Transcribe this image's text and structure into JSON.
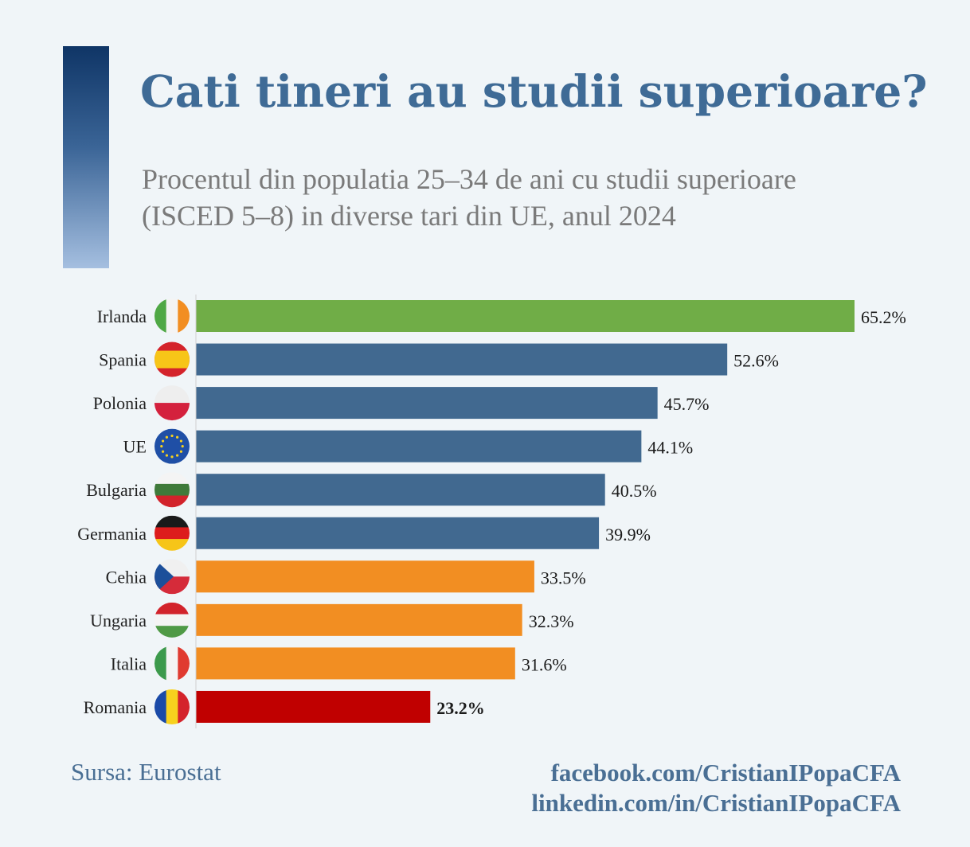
{
  "title": "Cati tineri au studii superioare?",
  "subtitle_line1": "Procentul din populatia 25–34 de ani cu studii superioare",
  "subtitle_line2": "(ISCED 5–8) in diverse tari din UE, anul 2024",
  "footer": {
    "source": "Sursa: Eurostat",
    "facebook": "facebook.com/CristianIPopaCFA",
    "linkedin": "linkedin.com/in/CristianIPopaCFA"
  },
  "colors": {
    "green": "#70ad47",
    "blue": "#416990",
    "orange": "#f28e22",
    "red": "#c00000"
  },
  "chart_data": {
    "type": "bar",
    "orientation": "horizontal",
    "categories": [
      "Irlanda",
      "Spania",
      "Polonia",
      "UE",
      "Bulgaria",
      "Germania",
      "Cehia",
      "Ungaria",
      "Italia",
      "Romania"
    ],
    "values": [
      65.2,
      52.6,
      45.7,
      44.1,
      40.5,
      39.9,
      33.5,
      32.3,
      31.6,
      23.2
    ],
    "value_labels": [
      "65.2%",
      "52.6%",
      "45.7%",
      "44.1%",
      "40.5%",
      "39.9%",
      "33.5%",
      "32.3%",
      "31.6%",
      "23.2%"
    ],
    "bar_colors": [
      "#70ad47",
      "#416990",
      "#416990",
      "#416990",
      "#416990",
      "#416990",
      "#f28e22",
      "#f28e22",
      "#f28e22",
      "#c00000"
    ],
    "flags": [
      "flag-ireland-icon",
      "flag-spain-icon",
      "flag-poland-icon",
      "flag-eu-icon",
      "flag-bulgaria-icon",
      "flag-germany-icon",
      "flag-czechia-icon",
      "flag-hungary-icon",
      "flag-italy-icon",
      "flag-romania-icon"
    ],
    "xlim": [
      0,
      65.2
    ],
    "grid": false,
    "highlight": "Romania"
  }
}
